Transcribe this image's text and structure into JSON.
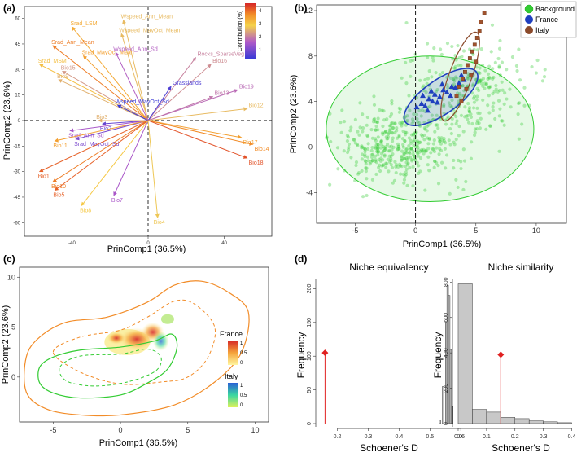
{
  "panels": {
    "a": "(a)",
    "b": "(b)",
    "c": "(c)",
    "d": "(d)"
  },
  "colors": {
    "red": "#d62728",
    "orange": "#f28c28",
    "yellow": "#f5d24a",
    "purple": "#9b59b6",
    "blue": "#3a3ad6",
    "green": "#33cc33",
    "france_blue": "#1f3fbf",
    "italy_brown": "#8b4a2b"
  },
  "chart_data": [
    {
      "id": "a",
      "type": "scatter",
      "title": "",
      "xlabel": "PrinComp1 (36.5%)",
      "ylabel": "PrinComp2 (23.6%)",
      "xlim": [
        -65,
        65
      ],
      "ylim": [
        -68,
        67
      ],
      "xticks": [
        -40,
        0,
        40
      ],
      "yticks": [
        60,
        45,
        30,
        15,
        0,
        -15,
        -30,
        -45,
        -60
      ],
      "colorbar": {
        "title": "Contribution (%)",
        "ticks": [
          "4",
          "3",
          "2",
          "1"
        ],
        "min": 1,
        "max": 4.5
      },
      "vectors": [
        {
          "name": "Srad_LSM",
          "x": -40,
          "y": 55,
          "contrib": 3.5
        },
        {
          "name": "Srad_Ann_Mean",
          "x": -50,
          "y": 44,
          "contrib": 3.9
        },
        {
          "name": "Srad_MayOct_Mean",
          "x": -34,
          "y": 38,
          "contrib": 3.6
        },
        {
          "name": "Srad_MSM",
          "x": -57,
          "y": 33,
          "contrib": 3.3
        },
        {
          "name": "Bio15",
          "x": -45,
          "y": 29,
          "contrib": 2.6
        },
        {
          "name": "Bio9",
          "x": -47,
          "y": 24,
          "contrib": 2.8
        },
        {
          "name": "Wspeed_Ann_Mean",
          "x": -13,
          "y": 59,
          "contrib": 2.9
        },
        {
          "name": "Wspeed_MayOct_Mean",
          "x": -14,
          "y": 51,
          "contrib": 2.9
        },
        {
          "name": "Wspeed_Ann_Sd",
          "x": -17,
          "y": 40,
          "contrib": 2.1
        },
        {
          "name": "Rocks_SparseVeg",
          "x": 25,
          "y": 37,
          "contrib": 2.4
        },
        {
          "name": "Bio16",
          "x": 33,
          "y": 33,
          "contrib": 2.5
        },
        {
          "name": "Grasslands",
          "x": 12,
          "y": 20,
          "contrib": 1.2
        },
        {
          "name": "Bio19",
          "x": 47,
          "y": 18,
          "contrib": 2.2
        },
        {
          "name": "Bio13",
          "x": 34,
          "y": 14,
          "contrib": 2.3
        },
        {
          "name": "Bio12",
          "x": 52,
          "y": 7,
          "contrib": 2.9
        },
        {
          "name": "Wspeed_MayOct_Sd",
          "x": -16,
          "y": 9,
          "contrib": 1.0
        },
        {
          "name": "Bio3",
          "x": -26,
          "y": 0,
          "contrib": 2.8
        },
        {
          "name": "Bio2",
          "x": -24,
          "y": -2,
          "contrib": 1.4
        },
        {
          "name": "Srad_Ann_Sd",
          "x": -41,
          "y": -6,
          "contrib": 2.0
        },
        {
          "name": "Srad_MayOct_Sd",
          "x": -38,
          "y": -11,
          "contrib": 1.6
        },
        {
          "name": "Bio11",
          "x": -49,
          "y": -12,
          "contrib": 3.6
        },
        {
          "name": "Bio17",
          "x": 49,
          "y": -10,
          "contrib": 3.6
        },
        {
          "name": "Bio14",
          "x": 55,
          "y": -14,
          "contrib": 3.8
        },
        {
          "name": "Bio18",
          "x": 52,
          "y": -22,
          "contrib": 4.2
        },
        {
          "name": "Bio1",
          "x": -57,
          "y": -30,
          "contrib": 4.1
        },
        {
          "name": "Bio10",
          "x": -50,
          "y": -36,
          "contrib": 3.9
        },
        {
          "name": "Bio5",
          "x": -49,
          "y": -41,
          "contrib": 4.1
        },
        {
          "name": "Bio7",
          "x": -18,
          "y": -44,
          "contrib": 2.0
        },
        {
          "name": "Bio8",
          "x": -35,
          "y": -50,
          "contrib": 3.2
        },
        {
          "name": "Bio4",
          "x": 5,
          "y": -57,
          "contrib": 3.0
        }
      ]
    },
    {
      "id": "b",
      "type": "scatter",
      "title": "",
      "xlabel": "PrinComp1 (36.5%)",
      "ylabel": "PrinComp2 (23.6%)",
      "xlim": [
        -8.2,
        12.5
      ],
      "ylim": [
        -6.7,
        12.5
      ],
      "xticks": [
        -5,
        0,
        5,
        10
      ],
      "yticks": [
        -4,
        0,
        4,
        8,
        12
      ],
      "legend": [
        "Background",
        "France",
        "Italy"
      ],
      "legend_position": "top-right",
      "ellipses": [
        {
          "name": "Background",
          "cx": 1.2,
          "cy": 1.6,
          "rx": 8.6,
          "ry": 6.4,
          "angle": 0
        },
        {
          "name": "France",
          "cx": 2.1,
          "cy": 4.4,
          "rx": 3.6,
          "ry": 1.5,
          "angle": 35
        },
        {
          "name": "Italy",
          "cx": 3.7,
          "cy": 6.2,
          "rx": 3.9,
          "ry": 1.0,
          "angle": 70
        }
      ],
      "series": [
        {
          "name": "France",
          "points": [
            [
              0.1,
              3.5
            ],
            [
              0.5,
              3.8
            ],
            [
              0.8,
              3.6
            ],
            [
              1.1,
              4.2
            ],
            [
              1.4,
              4.0
            ],
            [
              1.6,
              4.6
            ],
            [
              2.0,
              4.4
            ],
            [
              2.3,
              5.0
            ],
            [
              2.6,
              4.8
            ],
            [
              3.0,
              5.3
            ],
            [
              3.3,
              5.2
            ],
            [
              3.6,
              5.6
            ],
            [
              4.0,
              5.9
            ],
            [
              1.0,
              3.2
            ],
            [
              1.8,
              3.9
            ],
            [
              2.9,
              4.5
            ],
            [
              0.6,
              4.5
            ],
            [
              1.3,
              4.9
            ],
            [
              2.2,
              5.5
            ],
            [
              3.8,
              6.3
            ]
          ]
        },
        {
          "name": "Italy",
          "points": [
            [
              3.4,
              4.5
            ],
            [
              3.6,
              5.3
            ],
            [
              3.9,
              6.0
            ],
            [
              4.1,
              6.6
            ],
            [
              4.3,
              7.2
            ],
            [
              4.5,
              7.8
            ],
            [
              4.7,
              8.4
            ],
            [
              4.9,
              9.0
            ],
            [
              5.1,
              9.6
            ],
            [
              5.3,
              10.2
            ],
            [
              5.4,
              11.0
            ],
            [
              5.7,
              11.8
            ],
            [
              4.2,
              5.1
            ],
            [
              4.6,
              6.3
            ],
            [
              5.0,
              7.5
            ],
            [
              3.8,
              4.0
            ]
          ]
        }
      ]
    },
    {
      "id": "c",
      "type": "area",
      "title": "",
      "xlabel": "PrinComp1 (36.5%)",
      "ylabel": "PrinComp2 (23.6%)",
      "xlim": [
        -7.5,
        11
      ],
      "ylim": [
        -4.5,
        11
      ],
      "xticks": [
        -5,
        0,
        5,
        10
      ],
      "yticks": [
        0,
        5,
        10
      ],
      "legend": [
        {
          "name": "France",
          "ticks": [
            "1",
            "0.5",
            "0"
          ]
        },
        {
          "name": "Italy",
          "ticks": [
            "1",
            "0.5",
            "0"
          ]
        }
      ],
      "contours": [
        {
          "name": "France-total",
          "points": [
            [
              -7,
              2
            ],
            [
              -6,
              4
            ],
            [
              -4,
              5.5
            ],
            [
              -1,
              6
            ],
            [
              2,
              7.5
            ],
            [
              4,
              9.2
            ],
            [
              6,
              9.6
            ],
            [
              8,
              8.5
            ],
            [
              9.5,
              6.5
            ],
            [
              9,
              2.5
            ],
            [
              7,
              -0.5
            ],
            [
              4,
              -2.8
            ],
            [
              0,
              -3.8
            ],
            [
              -3,
              -3.8
            ],
            [
              -5.5,
              -3.2
            ],
            [
              -7,
              -1.5
            ]
          ]
        },
        {
          "name": "France-50",
          "points": [
            [
              -5,
              2.5
            ],
            [
              -3,
              4
            ],
            [
              0,
              4.7
            ],
            [
              2,
              6
            ],
            [
              4,
              7.6
            ],
            [
              5.5,
              7.3
            ],
            [
              7,
              5
            ],
            [
              6.5,
              2
            ],
            [
              5,
              0
            ],
            [
              3,
              -0.5
            ],
            [
              0,
              -0.7
            ],
            [
              -3,
              0.5
            ]
          ]
        },
        {
          "name": "Italy-total",
          "points": [
            [
              -6,
              1
            ],
            [
              -5,
              2
            ],
            [
              -3,
              2.7
            ],
            [
              0,
              3
            ],
            [
              2.5,
              3.6
            ],
            [
              3.8,
              4.3
            ],
            [
              4.2,
              3
            ],
            [
              3.5,
              0.8
            ],
            [
              2,
              -0.6
            ],
            [
              0,
              -1.8
            ],
            [
              -3,
              -2.1
            ],
            [
              -5,
              -1.6
            ],
            [
              -6,
              -0.6
            ]
          ]
        },
        {
          "name": "Italy-50",
          "points": [
            [
              -4.5,
              1
            ],
            [
              -3,
              2.1
            ],
            [
              0,
              2.3
            ],
            [
              2,
              2.8
            ],
            [
              3,
              2
            ],
            [
              2.6,
              0.6
            ],
            [
              0.5,
              -0.5
            ],
            [
              -2,
              -0.9
            ],
            [
              -4,
              -0.4
            ]
          ]
        }
      ]
    },
    {
      "id": "d-equivalency",
      "type": "bar",
      "title": "Niche equivalency",
      "xlabel": "Schoener's D",
      "ylabel": "Frequency",
      "xlim": [
        0.13,
        0.61
      ],
      "ylim": [
        0,
        215
      ],
      "xticks": [
        0.2,
        0.3,
        0.4,
        0.5,
        0.6
      ],
      "yticks": [
        0,
        50,
        100,
        150,
        200
      ],
      "bins": [
        0.53,
        0.54,
        0.55,
        0.555,
        0.56,
        0.565,
        0.57
      ],
      "values": [
        5,
        55,
        150,
        205,
        190,
        110,
        25
      ],
      "bin_width": 0.005,
      "observed": 0.16,
      "observed_y": 105
    },
    {
      "id": "d-similarity",
      "type": "bar",
      "title": "Niche similarity",
      "xlabel": "Schoener's D",
      "ylabel": "Frequency",
      "xlim": [
        -0.02,
        0.41
      ],
      "ylim": [
        0,
        820
      ],
      "xticks": [
        0.0,
        0.1,
        0.2,
        0.3,
        0.4
      ],
      "yticks": [
        0,
        200,
        400,
        600,
        800
      ],
      "bins": [
        0.0,
        0.05,
        0.1,
        0.15,
        0.2,
        0.25,
        0.3,
        0.35
      ],
      "values": [
        790,
        80,
        65,
        35,
        28,
        15,
        10,
        5
      ],
      "bin_width": 0.05,
      "observed": 0.15,
      "observed_y": 390
    }
  ]
}
